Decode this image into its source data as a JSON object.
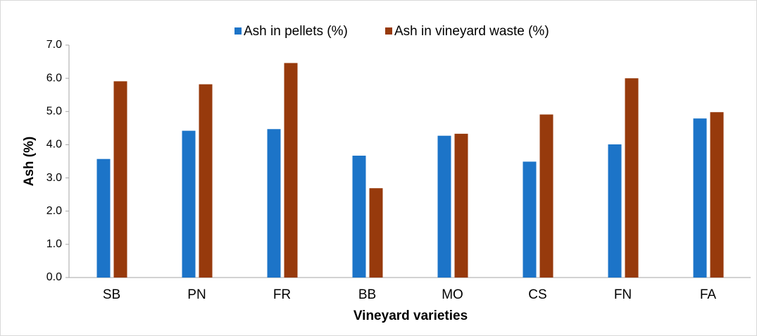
{
  "chart_data": {
    "type": "bar",
    "x_label": "Vineyard varieties",
    "y_label": "Ash (%)",
    "categories": [
      "SB",
      "PN",
      "FR",
      "BB",
      "MO",
      "CS",
      "FN",
      "FA"
    ],
    "series": [
      {
        "name": "Ash in pellets (%)",
        "color": "#1c74c8",
        "values": [
          3.57,
          4.42,
          4.47,
          3.67,
          4.27,
          3.49,
          4.01,
          4.79
        ]
      },
      {
        "name": "Ash in vineyard waste (%)",
        "color": "#973a0c",
        "values": [
          5.91,
          5.82,
          6.46,
          2.69,
          4.33,
          4.91,
          6.0,
          4.98
        ]
      }
    ],
    "ylim": [
      0,
      7
    ],
    "yticks": [
      {
        "value": 0,
        "label": "0.0"
      },
      {
        "value": 1,
        "label": "1.0"
      },
      {
        "value": 2,
        "label": "2.0"
      },
      {
        "value": 3,
        "label": "3.0"
      },
      {
        "value": 4,
        "label": "4.0"
      },
      {
        "value": 5,
        "label": "5.0"
      },
      {
        "value": 6,
        "label": "6.0"
      },
      {
        "value": 7,
        "label": "7.0"
      }
    ],
    "grid": false,
    "legend": "top"
  }
}
